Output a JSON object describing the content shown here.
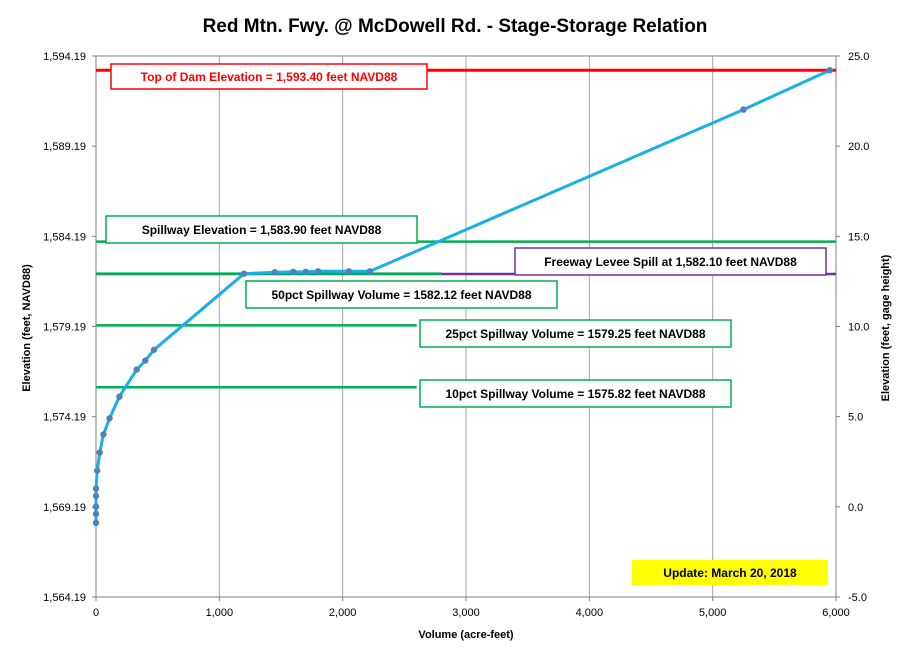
{
  "chart_data": {
    "type": "line",
    "title": "Red Mtn. Fwy. @ McDowell Rd. - Stage-Storage Relation",
    "xlabel": "Volume (acre-feet)",
    "ylabel": "Elevation  (feet, NAVD88)",
    "y2label": "Elevation  (feet, gage height)",
    "xlim": [
      0,
      6000
    ],
    "ylim": [
      1564.19,
      1594.19
    ],
    "y2lim": [
      -5.0,
      25.0
    ],
    "x_ticks": [
      0,
      1000,
      2000,
      3000,
      4000,
      5000,
      6000
    ],
    "x_tick_labels": [
      "0",
      "1,000",
      "2,000",
      "3,000",
      "4,000",
      "5,000",
      "6,000"
    ],
    "y_ticks": [
      1564.19,
      1569.19,
      1574.19,
      1579.19,
      1584.19,
      1589.19,
      1594.19
    ],
    "y_tick_labels": [
      "1,564.19",
      "1,569.19",
      "1,574.19",
      "1,579.19",
      "1,584.19",
      "1,589.19",
      "1,594.19"
    ],
    "y2_ticks": [
      -5,
      0,
      5,
      10,
      15,
      20,
      25
    ],
    "y2_tick_labels": [
      "-5.0",
      "0.0",
      "5.0",
      "10.0",
      "15.0",
      "20.0",
      "25.0"
    ],
    "grid": "vertical",
    "series": [
      {
        "color": "#1aafe6",
        "marker_color": "#4f81bd",
        "points": [
          [
            0,
            1568.3
          ],
          [
            0,
            1568.8
          ],
          [
            0,
            1569.2
          ],
          [
            0,
            1569.8
          ],
          [
            0,
            1570.2
          ],
          [
            10,
            1571.2
          ],
          [
            30,
            1572.2
          ],
          [
            60,
            1573.2
          ],
          [
            110,
            1574.1
          ],
          [
            190,
            1575.3
          ],
          [
            330,
            1576.8
          ],
          [
            400,
            1577.3
          ],
          [
            470,
            1577.9
          ],
          [
            1200,
            1582.12
          ],
          [
            1450,
            1582.2
          ],
          [
            1600,
            1582.22
          ],
          [
            1700,
            1582.22
          ],
          [
            1800,
            1582.25
          ],
          [
            2050,
            1582.25
          ],
          [
            2220,
            1582.25
          ],
          [
            5250,
            1591.22
          ],
          [
            5950,
            1593.4
          ]
        ]
      }
    ],
    "reference_lines": [
      {
        "value": 1593.4,
        "color": "#ff0000",
        "label": "Top of Dam Elevation = 1,593.40  feet NAVD88",
        "label_color": "#ff0000",
        "border": "#ff0000",
        "x_from": 0,
        "x_to": 6000
      },
      {
        "value": 1583.9,
        "color": "#00b050",
        "label": "Spillway Elevation = 1,583.90  feet NAVD88",
        "label_color": "#000000",
        "border": "#00b050",
        "x_from": 0,
        "x_to": 6000
      },
      {
        "value": 1582.1,
        "color": "#7030a0",
        "label": "Freeway Levee Spill at 1,582.10  feet NAVD88",
        "label_color": "#000000",
        "border": "#7030a0",
        "x_from": 0,
        "x_to": 6000
      },
      {
        "value": 1582.12,
        "color": "#00b050",
        "label": "50pct Spillway Volume = 1582.12  feet NAVD88",
        "label_color": "#000000",
        "border": "#00b050",
        "x_from": 0,
        "x_to": 2800
      },
      {
        "value": 1579.25,
        "color": "#00b050",
        "label": "25pct Spillway Volume = 1579.25  feet NAVD88",
        "label_color": "#000000",
        "border": "#00b050",
        "x_from": 0,
        "x_to": 2600
      },
      {
        "value": 1575.82,
        "color": "#00b050",
        "label": "10pct Spillway Volume = 1575.82  feet NAVD88",
        "label_color": "#000000",
        "border": "#00b050",
        "x_from": 0,
        "x_to": 2600
      }
    ],
    "annotation": {
      "text": "Update: March 20, 2018",
      "background": "#ffff00"
    }
  }
}
